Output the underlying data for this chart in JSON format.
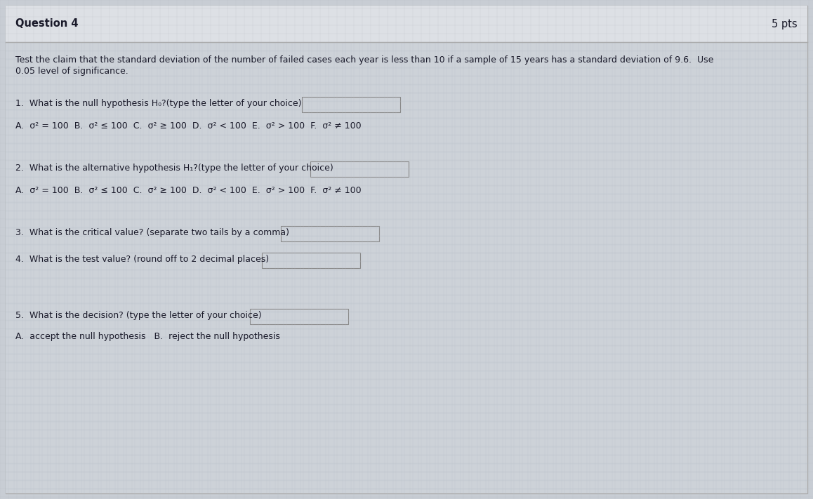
{
  "title": "Question 4",
  "pts": "5 pts",
  "outer_bg": "#c8cdd4",
  "header_bg": "#dde0e5",
  "body_bg": "#cdd2d8",
  "grid_color": "#b8bfc8",
  "border_color": "#999999",
  "header_line_color": "#aaaaaa",
  "intro_text_line1": "Test the claim that the standard deviation of the number of failed cases each year is less than 10 if a sample of 15 years has a standard deviation of 9.6.  Use",
  "intro_text_line2": "0.05 level of significance.",
  "q1_label": "1.  What is the null hypothesis H₀?(type the letter of your choice)",
  "q1_choices": "A.  σ² = 100  B.  σ² ≤ 100  C.  σ² ≥ 100  D.  σ² < 100  E.  σ² > 100  F.  σ² ≠ 100",
  "q2_label": "2.  What is the alternative hypothesis H₁?(type the letter of your choice)",
  "q2_choices": "A.  σ² = 100  B.  σ² ≤ 100  C.  σ² ≥ 100  D.  σ² < 100  E.  σ² > 100  F.  σ² ≠ 100",
  "q3_label": "3.  What is the critical value? (separate two tails by a comma)",
  "q4_label": "4.  What is the test value? (round off to 2 decimal places)",
  "q5_label": "5.  What is the decision? (type the letter of your choice)",
  "q5_choices": "A.  accept the null hypothesis   B.  reject the null hypothesis",
  "box_color": "#cdd2d8",
  "box_border": "#888888",
  "text_color": "#1a1a2a",
  "title_font_size": 10.5,
  "body_font_size": 9.0,
  "choices_font_size": 9.0
}
